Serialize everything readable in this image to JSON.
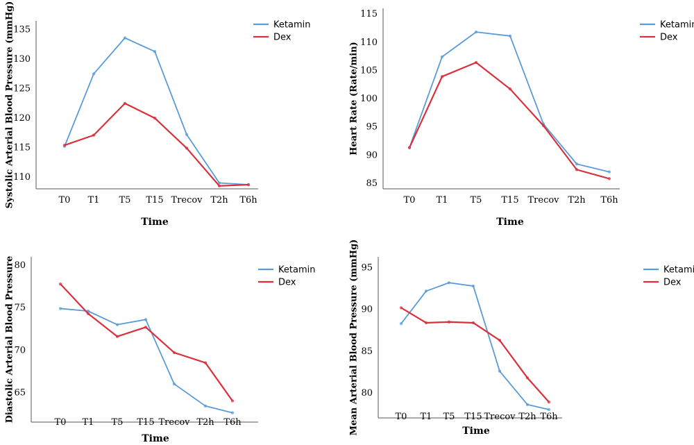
{
  "colors": {
    "Ketamin": "#5b9bd5",
    "Dex": "#d9303c"
  },
  "chart_data": [
    {
      "type": "line",
      "categories": [
        "T0",
        "T1",
        "T5",
        "T15",
        "Trecov",
        "T2h",
        "T6h"
      ],
      "xlabel": "Time",
      "ylabel": "Systolic Arterial Blood Pressure (mmHg)",
      "yticks": [
        110,
        115,
        120,
        125,
        130,
        135
      ],
      "ylim": [
        108,
        136.5
      ],
      "series": [
        {
          "name": "Ketamin",
          "values": [
            115.2,
            127.5,
            133.6,
            131.3,
            117.2,
            109.0,
            108.7
          ]
        },
        {
          "name": "Dex",
          "values": [
            115.4,
            117.1,
            122.5,
            120.0,
            114.9,
            108.5,
            108.7
          ]
        }
      ]
    },
    {
      "type": "line",
      "categories": [
        "T0",
        "T1",
        "T5",
        "T15",
        "Trecov",
        "T2h",
        "T6h"
      ],
      "xlabel": "Time",
      "ylabel": "Heart Rate (Rate/min)",
      "yticks": [
        85,
        90,
        95,
        100,
        105,
        110,
        115
      ],
      "ylim": [
        84,
        116
      ],
      "series": [
        {
          "name": "Ketamin",
          "values": [
            91.3,
            107.4,
            111.8,
            111.1,
            95.5,
            88.4,
            87.0
          ]
        },
        {
          "name": "Dex",
          "values": [
            91.3,
            103.9,
            106.4,
            101.7,
            95.2,
            87.4,
            85.8
          ]
        }
      ]
    },
    {
      "type": "line",
      "categories": [
        "T0",
        "T1",
        "T5",
        "T15",
        "Trecov",
        "T2h",
        "T6h"
      ],
      "xlabel": "Time",
      "ylabel": "Diastolic Arterial Blood Pressure",
      "yticks": [
        65,
        70,
        75,
        80
      ],
      "ylim": [
        61.5,
        81
      ],
      "series": [
        {
          "name": "Ketamin",
          "values": [
            74.9,
            74.6,
            73.0,
            73.6,
            66.0,
            63.4,
            62.6
          ]
        },
        {
          "name": "Dex",
          "values": [
            77.8,
            74.3,
            71.6,
            72.7,
            69.7,
            68.5,
            64.0
          ]
        }
      ]
    },
    {
      "type": "line",
      "categories": [
        "T0",
        "T1",
        "T5",
        "T15",
        "Trecov",
        "T2h",
        "T6h"
      ],
      "xlabel": "Time",
      "ylabel": "Mean Arterial Blood Pressure (mmHg)",
      "yticks": [
        80,
        85,
        90,
        95
      ],
      "ylim": [
        77,
        96.3
      ],
      "series": [
        {
          "name": "Ketamin",
          "values": [
            88.3,
            92.2,
            93.2,
            92.8,
            82.6,
            78.6,
            78.0
          ]
        },
        {
          "name": "Dex",
          "values": [
            90.2,
            88.4,
            88.5,
            88.4,
            86.3,
            81.8,
            78.9
          ]
        }
      ]
    }
  ]
}
